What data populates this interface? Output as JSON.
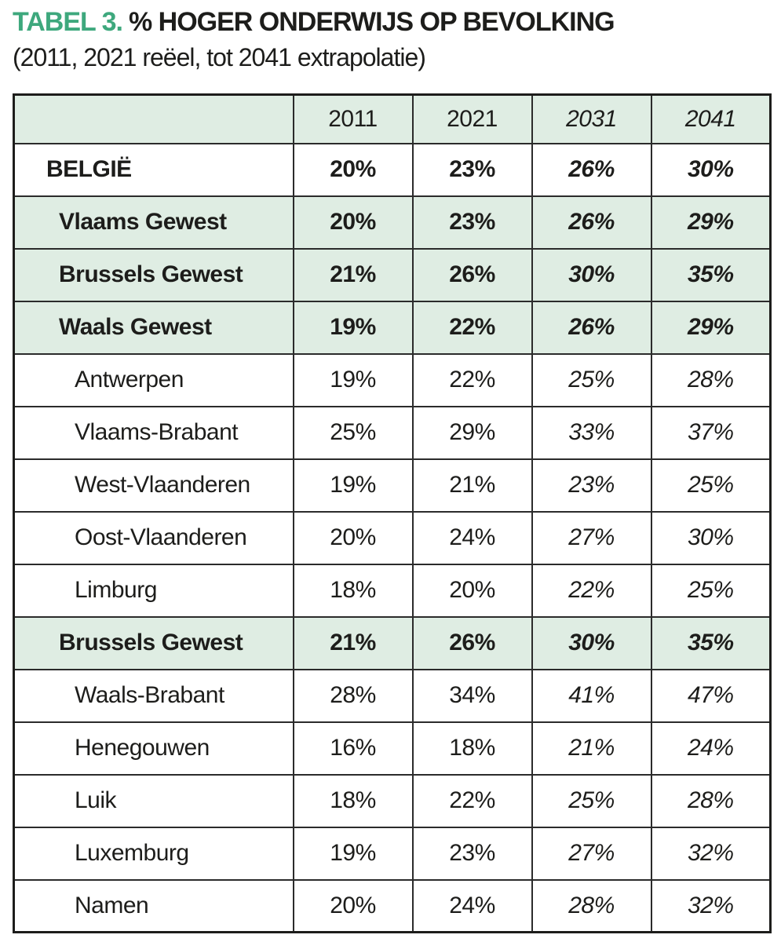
{
  "title": {
    "tag": "TABEL 3.",
    "text": "% HOGER ONDERWIJS OP BEVOLKING",
    "subtitle": "(2011, 2021 reëel, tot 2041 extrapolatie)"
  },
  "colors": {
    "accent_green": "#3ea87d",
    "row_highlight_green": "#dfede3",
    "border": "#1d1d1b"
  },
  "chart_data": {
    "type": "table",
    "columns": [
      "",
      "2011",
      "2021",
      "2031",
      "2041"
    ],
    "italic_columns": [
      "2031",
      "2041"
    ],
    "note": "2011 and 2021 are real figures; 2031 and 2041 (italic) are extrapolations",
    "rows": [
      {
        "name": "BELGIË",
        "values": [
          "20%",
          "23%",
          "26%",
          "30%"
        ],
        "bold": true,
        "highlight": false,
        "indent": 1
      },
      {
        "name": "Vlaams Gewest",
        "values": [
          "20%",
          "23%",
          "26%",
          "29%"
        ],
        "bold": true,
        "highlight": true,
        "indent": 2
      },
      {
        "name": "Brussels Gewest",
        "values": [
          "21%",
          "26%",
          "30%",
          "35%"
        ],
        "bold": true,
        "highlight": true,
        "indent": 2
      },
      {
        "name": "Waals Gewest",
        "values": [
          "19%",
          "22%",
          "26%",
          "29%"
        ],
        "bold": true,
        "highlight": true,
        "indent": 2
      },
      {
        "name": "Antwerpen",
        "values": [
          "19%",
          "22%",
          "25%",
          "28%"
        ],
        "bold": false,
        "highlight": false,
        "indent": 3
      },
      {
        "name": "Vlaams-Brabant",
        "values": [
          "25%",
          "29%",
          "33%",
          "37%"
        ],
        "bold": false,
        "highlight": false,
        "indent": 3
      },
      {
        "name": "West-Vlaanderen",
        "values": [
          "19%",
          "21%",
          "23%",
          "25%"
        ],
        "bold": false,
        "highlight": false,
        "indent": 3
      },
      {
        "name": "Oost-Vlaanderen",
        "values": [
          "20%",
          "24%",
          "27%",
          "30%"
        ],
        "bold": false,
        "highlight": false,
        "indent": 3
      },
      {
        "name": "Limburg",
        "values": [
          "18%",
          "20%",
          "22%",
          "25%"
        ],
        "bold": false,
        "highlight": false,
        "indent": 3
      },
      {
        "name": "Brussels Gewest",
        "values": [
          "21%",
          "26%",
          "30%",
          "35%"
        ],
        "bold": true,
        "highlight": true,
        "indent": 2
      },
      {
        "name": "Waals-Brabant",
        "values": [
          "28%",
          "34%",
          "41%",
          "47%"
        ],
        "bold": false,
        "highlight": false,
        "indent": 3
      },
      {
        "name": "Henegouwen",
        "values": [
          "16%",
          "18%",
          "21%",
          "24%"
        ],
        "bold": false,
        "highlight": false,
        "indent": 3
      },
      {
        "name": "Luik",
        "values": [
          "18%",
          "22%",
          "25%",
          "28%"
        ],
        "bold": false,
        "highlight": false,
        "indent": 3
      },
      {
        "name": "Luxemburg",
        "values": [
          "19%",
          "23%",
          "27%",
          "32%"
        ],
        "bold": false,
        "highlight": false,
        "indent": 3
      },
      {
        "name": "Namen",
        "values": [
          "20%",
          "24%",
          "28%",
          "32%"
        ],
        "bold": false,
        "highlight": false,
        "indent": 3
      }
    ]
  }
}
